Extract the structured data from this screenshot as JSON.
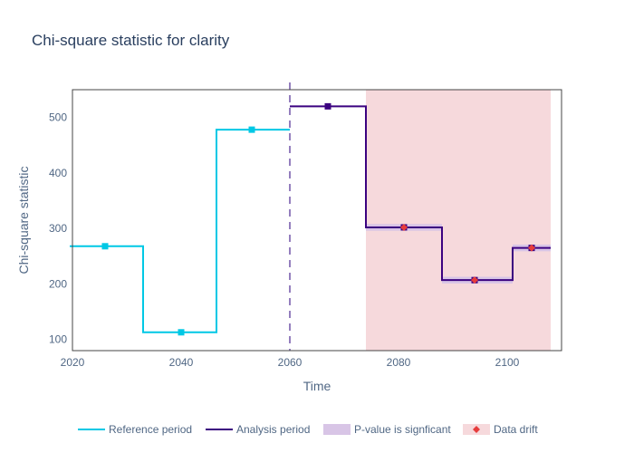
{
  "chart_data": {
    "type": "line",
    "title": "Chi-square statistic for clarity",
    "xlabel": "Time",
    "ylabel": "Chi-square statistic",
    "xlim": [
      2020,
      2110
    ],
    "ylim": [
      80,
      550
    ],
    "x_ticks": [
      2020,
      2040,
      2060,
      2080,
      2100
    ],
    "y_ticks": [
      100,
      200,
      300,
      400,
      500
    ],
    "grid": false,
    "legend_position": "bottom",
    "threshold_x": 2060,
    "series": [
      {
        "name": "Reference period",
        "color": "#00c8e5",
        "steps": [
          {
            "x0": 2019.5,
            "x1": 2033,
            "y": 268,
            "marker_x": 2026
          },
          {
            "x0": 2033,
            "x1": 2046.5,
            "y": 113,
            "marker_x": 2040
          },
          {
            "x0": 2046.5,
            "x1": 2060,
            "y": 478,
            "marker_x": 2053
          }
        ]
      },
      {
        "name": "Analysis period",
        "color": "#3b0280",
        "steps": [
          {
            "x0": 2060,
            "x1": 2074,
            "y": 520,
            "marker_x": 2067
          },
          {
            "x0": 2074,
            "x1": 2088,
            "y": 302,
            "marker_x": 2081
          },
          {
            "x0": 2088,
            "x1": 2101,
            "y": 207,
            "marker_x": 2094
          },
          {
            "x0": 2101,
            "x1": 2108,
            "y": 265,
            "marker_x": 2104.5
          }
        ]
      }
    ],
    "significant_bands": {
      "name": "P-value is signficant",
      "color": "#d8c5e6",
      "bands": [
        {
          "x0": 2074,
          "x1": 2088,
          "y0": 296,
          "y1": 308
        },
        {
          "x0": 2088,
          "x1": 2101,
          "y0": 201,
          "y1": 213
        },
        {
          "x0": 2101,
          "x1": 2108,
          "y0": 259,
          "y1": 271
        }
      ]
    },
    "drift_region": {
      "name": "Data drift",
      "color": "#f6d9dc",
      "marker_color": "#e63c3c",
      "x0": 2074,
      "x1": 2108,
      "points": [
        {
          "x": 2081,
          "y": 302
        },
        {
          "x": 2094,
          "y": 207
        },
        {
          "x": 2104.5,
          "y": 265
        }
      ]
    }
  }
}
